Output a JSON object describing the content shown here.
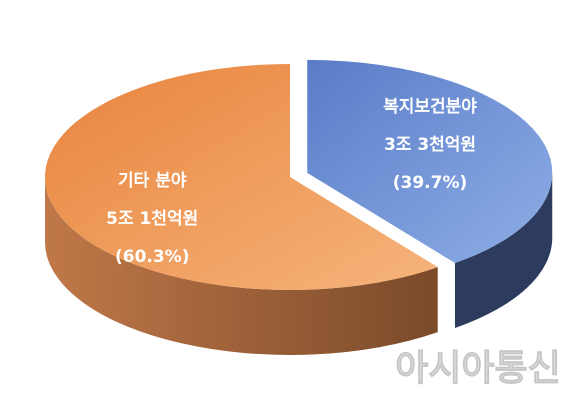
{
  "chart_data": {
    "type": "pie",
    "style": "3d-exploded",
    "categories": [
      "복지보건분야",
      "기타 분야"
    ],
    "amount_labels": [
      "3조 3천억원",
      "5조 1천억원"
    ],
    "values": [
      39.7,
      60.3
    ],
    "value_labels": [
      "(39.7%)",
      "(60.3%)"
    ],
    "colors": [
      "#7494d4",
      "#ee9a58"
    ],
    "side_colors": [
      "#2c3b5e",
      "#a8683c"
    ],
    "exploded": [
      true,
      false
    ]
  },
  "watermark": "아시아통신"
}
